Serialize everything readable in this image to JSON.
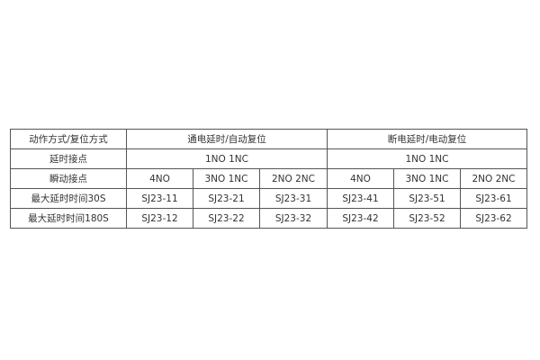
{
  "header": {
    "label": "动作方式/复位方式",
    "group1": "通电延时/自动复位",
    "group2": "断电延时/电动复位"
  },
  "delay_contact": {
    "label": "延时接点",
    "group1": "1NO 1NC",
    "group2": "1NO 1NC"
  },
  "instant_contact": {
    "label": "瞬动接点",
    "values": [
      "4NO",
      "3NO 1NC",
      "2NO 2NC",
      "4NO",
      "3NO 1NC",
      "2NO 2NC"
    ]
  },
  "rows": [
    {
      "label": "最大延时时间30S",
      "values": [
        "SJ23-11",
        "SJ23-21",
        "SJ23-31",
        "SJ23-41",
        "SJ23-51",
        "SJ23-61"
      ]
    },
    {
      "label": "最大延时时间180S",
      "values": [
        "SJ23-12",
        "SJ23-22",
        "SJ23-32",
        "SJ23-42",
        "SJ23-52",
        "SJ23-62"
      ]
    }
  ]
}
